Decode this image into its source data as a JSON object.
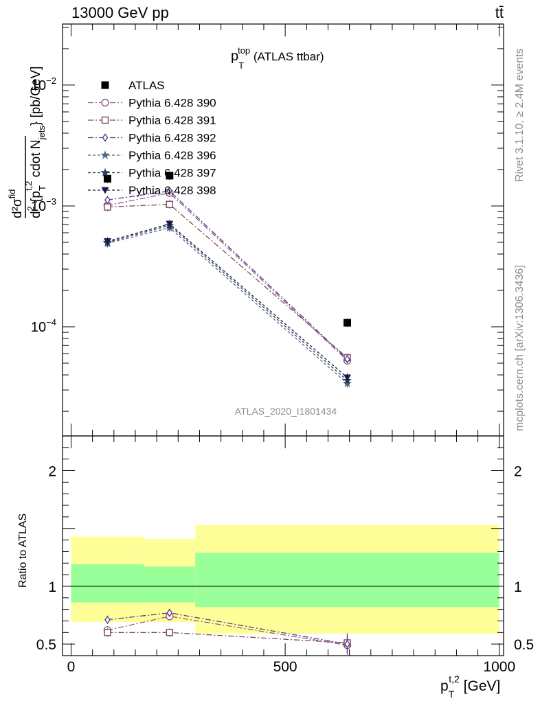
{
  "header": {
    "energy_label": "13000 GeV pp",
    "process_label": "tt̄"
  },
  "side_labels": {
    "rivet": "Rivet 3.1.10, ≥ 2.4M events",
    "mcplots": "mcplots.cern.ch [arXiv:1306.3436]"
  },
  "watermark": "ATLAS_2020_I1801434",
  "colors": {
    "band_inner": "#99ff99",
    "band_outer": "#ffff99",
    "data": "#000000"
  },
  "chart_data": [
    {
      "type": "scatter",
      "panel": "main",
      "title": "p_T^top (ATLAS ttbar)",
      "title_parts": {
        "base": "p",
        "sub": "T",
        "sup": "top",
        "suffix": " (ATLAS ttbar)"
      },
      "ylabel": "d²σ^fid / d² {p_T^t,2 cdot N_jets} [pb/GeV]",
      "ylabel_parts": {
        "frac_top": "d²σ",
        "frac_top_sup": "fid",
        "bottom_pre": "d",
        "bottom_sup": "2",
        "bottom_mid": " {p",
        "pT_sub": "T",
        "pT_sup": "t,2",
        "cdot": " cdot N",
        "jets_sub": "jets",
        "unit": "} [pb/GeV]"
      },
      "yscale": "log",
      "ylim": [
        1.25e-05,
        0.032
      ],
      "xlim": [
        -20,
        1010
      ],
      "y_ticks": [
        {
          "v": 0.01,
          "base": "10",
          "exp": "−2"
        },
        {
          "v": 0.001,
          "base": "10",
          "exp": "−3"
        },
        {
          "v": 0.0001,
          "base": "10",
          "exp": "−4"
        }
      ],
      "legend_position": "top-left",
      "series": [
        {
          "name": "ATLAS",
          "marker": "filled-square",
          "line": "none",
          "color": "#000000",
          "x": [
            85,
            230,
            645
          ],
          "y": [
            0.00168,
            0.00178,
            0.000108
          ]
        },
        {
          "name": "Pythia 6.428 390",
          "marker": "open-circle",
          "line": "dash-dot",
          "color": "#8a5a8a",
          "x": [
            85,
            230,
            645
          ],
          "y": [
            0.00101,
            0.00128,
            5.25e-05
          ]
        },
        {
          "name": "Pythia 6.428 391",
          "marker": "open-square",
          "line": "dash-dot",
          "color": "#7a4a5a",
          "x": [
            85,
            230,
            645
          ],
          "y": [
            0.00098,
            0.00103,
            5.55e-05
          ]
        },
        {
          "name": "Pythia 6.428 392",
          "marker": "open-diamond",
          "line": "dash-dot",
          "color": "#5a3a8a",
          "x": [
            85,
            230,
            645
          ],
          "y": [
            0.00112,
            0.00133,
            5.4e-05
          ]
        },
        {
          "name": "Pythia 6.428 396",
          "marker": "star",
          "line": "dashed",
          "color": "#4a6a8a",
          "x": [
            85,
            230,
            645
          ],
          "y": [
            0.00049,
            0.00066,
            3.4e-05
          ]
        },
        {
          "name": "Pythia 6.428 397",
          "marker": "filled-star",
          "line": "dashed",
          "color": "#2a3a5a",
          "x": [
            85,
            230,
            645
          ],
          "y": [
            0.0005,
            0.00069,
            3.6e-05
          ]
        },
        {
          "name": "Pythia 6.428 398",
          "marker": "filled-triangle-down",
          "line": "dashed",
          "color": "#1a1a4a",
          "x": [
            85,
            230,
            645
          ],
          "y": [
            0.00051,
            0.00071,
            3.8e-05
          ]
        }
      ]
    },
    {
      "type": "scatter",
      "panel": "ratio",
      "ylabel": "Ratio to ATLAS",
      "xlabel": "p_T^t,2 [GeV]",
      "xlabel_parts": {
        "base": "p",
        "sub": "T",
        "sup": "t,2",
        "unit": " [GeV]"
      },
      "ylim": [
        0.4,
        2.3
      ],
      "xlim": [
        -20,
        1010
      ],
      "x_ticks": [
        0,
        500,
        1000
      ],
      "y_ticks": [
        0.5,
        1,
        2
      ],
      "bands": [
        {
          "x": [
            0,
            170
          ],
          "inner": [
            0.86,
            1.19
          ],
          "outer": [
            0.69,
            1.43
          ]
        },
        {
          "x": [
            170,
            290
          ],
          "inner": [
            0.86,
            1.17
          ],
          "outer": [
            0.69,
            1.41
          ]
        },
        {
          "x": [
            290,
            1000
          ],
          "inner": [
            0.82,
            1.29
          ],
          "outer": [
            0.59,
            1.53
          ]
        }
      ],
      "series": [
        {
          "name": "Pythia 6.428 390",
          "x": [
            85,
            230,
            645
          ],
          "y": [
            0.62,
            0.74,
            0.49
          ]
        },
        {
          "name": "Pythia 6.428 391",
          "x": [
            85,
            230,
            645
          ],
          "y": [
            0.6,
            0.6,
            0.51
          ]
        },
        {
          "name": "Pythia 6.428 392",
          "x": [
            85,
            230,
            645
          ],
          "y": [
            0.71,
            0.77,
            0.5
          ]
        }
      ]
    }
  ]
}
